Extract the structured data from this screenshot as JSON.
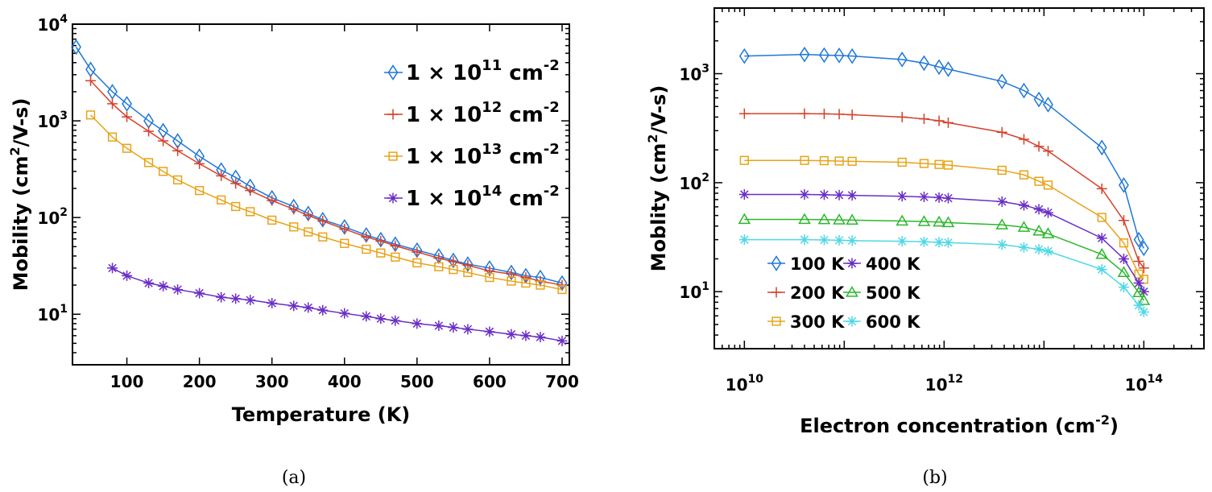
{
  "chart_data": [
    {
      "type": "line",
      "caption": "(a)",
      "xlabel": "Temperature (K)",
      "ylabel": "Mobility (cm²/V-s)",
      "xlim": [
        25,
        710
      ],
      "ylim": [
        3,
        10000
      ],
      "yscale": "log",
      "xticks": [
        100,
        200,
        300,
        400,
        500,
        600,
        700
      ],
      "yticks": [
        10,
        100,
        1000,
        10000
      ],
      "legend_position": "top-right",
      "series": [
        {
          "name": "1 × 10¹¹ cm⁻²",
          "label_parts": [
            "1 × 10",
            "11",
            " cm",
            "-2"
          ],
          "color": "#1f77d8",
          "marker": "diamond",
          "x": [
            30,
            50,
            80,
            100,
            130,
            150,
            170,
            200,
            230,
            250,
            270,
            300,
            330,
            350,
            370,
            400,
            430,
            450,
            470,
            500,
            530,
            550,
            570,
            600,
            630,
            650,
            670,
            700
          ],
          "y": [
            5800,
            3400,
            2000,
            1500,
            1000,
            790,
            620,
            430,
            310,
            260,
            210,
            160,
            130,
            110,
            95,
            80,
            66,
            59,
            53,
            46,
            40,
            36,
            33,
            30,
            27,
            25,
            24,
            21
          ]
        },
        {
          "name": "1 × 10¹² cm⁻²",
          "label_parts": [
            "1 × 10",
            "12",
            " cm",
            "-2"
          ],
          "color": "#d6402a",
          "marker": "plus",
          "x": [
            50,
            80,
            100,
            130,
            150,
            170,
            200,
            230,
            250,
            270,
            300,
            330,
            350,
            370,
            400,
            430,
            450,
            470,
            500,
            530,
            550,
            570,
            600,
            630,
            650,
            670,
            700
          ],
          "y": [
            2600,
            1500,
            1100,
            780,
            620,
            490,
            360,
            270,
            225,
            190,
            150,
            122,
            105,
            92,
            76,
            63,
            57,
            51,
            44,
            38,
            35,
            32,
            28,
            26,
            24,
            22,
            20
          ]
        },
        {
          "name": "1 × 10¹³ cm⁻²",
          "label_parts": [
            "1 × 10",
            "13",
            " cm",
            "-2"
          ],
          "color": "#e8a317",
          "marker": "square",
          "x": [
            50,
            80,
            100,
            130,
            150,
            170,
            200,
            230,
            250,
            270,
            300,
            330,
            350,
            370,
            400,
            430,
            450,
            470,
            500,
            530,
            550,
            570,
            600,
            630,
            650,
            670,
            700
          ],
          "y": [
            1150,
            680,
            520,
            370,
            300,
            245,
            190,
            152,
            130,
            115,
            94,
            80,
            71,
            63,
            54,
            47,
            43,
            39,
            34,
            31,
            29,
            27,
            24,
            22,
            21,
            20,
            18
          ]
        },
        {
          "name": "1 × 10¹⁴ cm⁻²",
          "label_parts": [
            "1 × 10",
            "14",
            " cm",
            "-2"
          ],
          "color": "#6a2ec6",
          "marker": "star",
          "x": [
            80,
            100,
            130,
            150,
            170,
            200,
            230,
            250,
            270,
            300,
            330,
            350,
            370,
            400,
            430,
            450,
            470,
            500,
            530,
            550,
            570,
            600,
            630,
            650,
            670,
            700
          ],
          "y": [
            30,
            25,
            21,
            19.5,
            18,
            16.5,
            15,
            14.5,
            14,
            13,
            12.2,
            11.7,
            11,
            10.2,
            9.5,
            9,
            8.6,
            8,
            7.6,
            7.3,
            7,
            6.6,
            6.2,
            6,
            5.8,
            5.3
          ]
        }
      ]
    },
    {
      "type": "line",
      "caption": "(b)",
      "xlabel": "Electron concentration (cm⁻²)",
      "xlabel_parts": [
        "Electron concentration (cm",
        "-2",
        ")"
      ],
      "ylabel": "Moblity (cm²/V-s)",
      "xscale": "log",
      "yscale": "log",
      "xlim": [
        5000000000.0,
        400000000000000.0
      ],
      "ylim": [
        3,
        4000
      ],
      "xticks": [
        10000000000.0,
        1000000000000.0,
        100000000000000.0
      ],
      "xtick_exponents": [
        "10",
        "12",
        "14"
      ],
      "yticks": [
        10,
        100,
        1000
      ],
      "ytick_exponents": [
        "1",
        "2",
        "3"
      ],
      "legend_position": "bottom-left",
      "x": [
        10000000000.0,
        40000000000.0,
        63000000000.0,
        89000000000.0,
        120000000000.0,
        380000000000.0,
        630000000000.0,
        890000000000.0,
        1100000000000.0,
        3800000000000.0,
        6300000000000.0,
        8900000000000.0,
        11000000000000.0,
        38000000000000.0,
        63000000000000.0,
        89000000000000.0,
        100000000000000.0
      ],
      "series": [
        {
          "name": "100 K",
          "color": "#1f77d8",
          "marker": "diamond",
          "y": [
            1450,
            1500,
            1480,
            1470,
            1450,
            1350,
            1250,
            1150,
            1100,
            850,
            700,
            580,
            520,
            210,
            95,
            30,
            25
          ]
        },
        {
          "name": "200 K",
          "color": "#d6402a",
          "marker": "plus",
          "y": [
            430,
            430,
            428,
            425,
            420,
            400,
            385,
            370,
            355,
            290,
            250,
            215,
            195,
            88,
            45,
            19,
            16.5
          ]
        },
        {
          "name": "300 K",
          "color": "#e8a317",
          "marker": "square",
          "y": [
            160,
            160,
            159,
            158,
            157,
            154,
            150,
            147,
            145,
            130,
            118,
            103,
            95,
            48,
            28,
            14.5,
            13
          ]
        },
        {
          "name": "400 K",
          "color": "#6a2ec6",
          "marker": "star",
          "y": [
            78,
            78,
            77.5,
            77,
            76.5,
            75,
            74,
            73,
            72,
            67,
            62,
            57,
            53,
            31,
            20,
            12,
            10
          ]
        },
        {
          "name": "500 K",
          "color": "#2cb82c",
          "marker": "triangle",
          "y": [
            46,
            46,
            45.8,
            45.5,
            45.3,
            44.5,
            44,
            43.5,
            43,
            41,
            39,
            36,
            34,
            22,
            15,
            9.8,
            8.3
          ]
        },
        {
          "name": "600 K",
          "color": "#4fd8e6",
          "marker": "star",
          "y": [
            30,
            30,
            29.8,
            29.6,
            29.4,
            29,
            28.7,
            28.4,
            28.2,
            27,
            25.5,
            24.5,
            23.5,
            16,
            11,
            7.5,
            6.5
          ]
        }
      ]
    }
  ]
}
